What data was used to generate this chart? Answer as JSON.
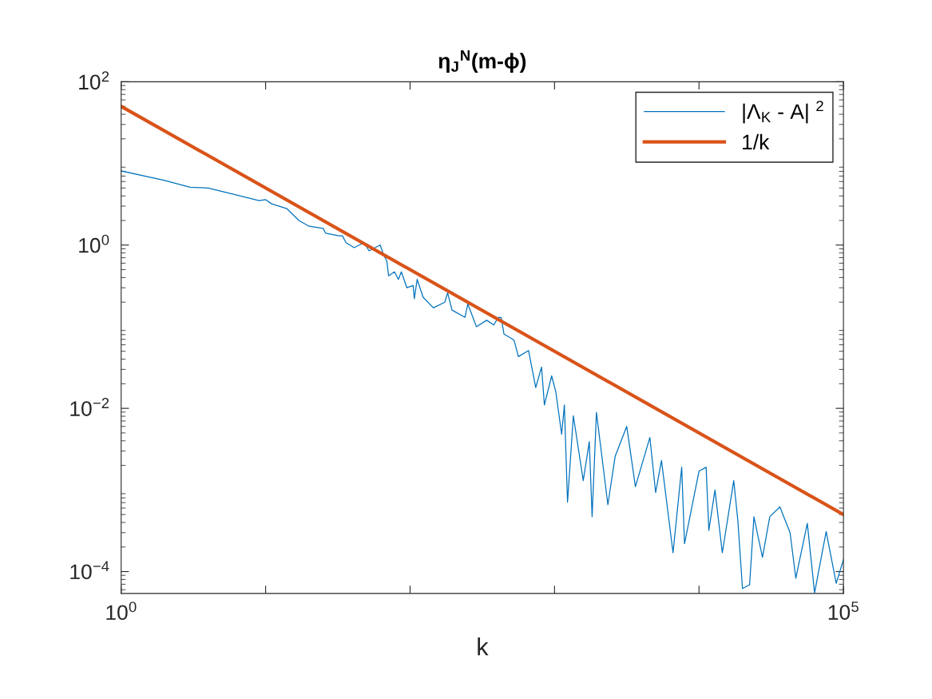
{
  "chart_data": {
    "type": "line",
    "title": "η$_{J}$$^{N}$(m-ϕ)",
    "xlabel": "k",
    "log": "xy",
    "grid": false,
    "legend": "top right",
    "marker": "none",
    "line_style": "solid",
    "xlim": [
      1,
      100000
    ],
    "xticks": [
      {
        "value": 1,
        "label": "10$^{0}$"
      },
      {
        "value": 10,
        "label": null
      },
      {
        "value": 100,
        "label": null
      },
      {
        "value": 1000,
        "label": null
      },
      {
        "value": 10000,
        "label": null
      },
      {
        "value": 100000,
        "label": "10$^{5}$"
      }
    ],
    "ylim": [
      5.4e-05,
      100
    ],
    "yticks": [
      {
        "value": 0.0001,
        "label": "10$^{−4}$"
      },
      {
        "value": 0.01,
        "label": "10$^{−2}$"
      },
      {
        "value": 1,
        "label": "10$^{0}$"
      },
      {
        "value": 100,
        "label": "10$^{2}$"
      }
    ],
    "series": [
      {
        "name": "|Λ$_{K}$ - A| $^{2}$",
        "color": "#0072bd",
        "x": [
          1,
          2.0,
          3.0,
          4.0,
          6.3,
          9.0,
          10,
          11,
          14,
          17,
          20,
          25,
          26,
          32,
          34,
          36,
          41,
          48,
          52,
          62,
          66,
          69,
          71,
          78,
          83,
          87,
          95,
          105,
          107,
          112,
          123,
          145,
          174,
          182,
          195,
          240,
          251,
          288,
          339,
          380,
          407,
          427,
          447,
          501,
          525,
          562,
          661,
          741,
          813,
          851,
          955,
          1020,
          1120,
          1170,
          1230,
          1350,
          1580,
          1740,
          1820,
          1950,
          2340,
          2630,
          3160,
          3630,
          4570,
          5010,
          5500,
          6610,
          7590,
          7940,
          10000,
          11200,
          11700,
          12900,
          14500,
          17400,
          18600,
          20000,
          22400,
          24000,
          27500,
          30900,
          36300,
          42700,
          46800,
          56200,
          63100,
          75900,
          89100,
          100000
        ],
        "values": [
          8.1,
          6.2,
          5.1,
          5.0,
          4.1,
          3.5,
          3.6,
          3.2,
          2.8,
          2.0,
          1.7,
          1.6,
          1.4,
          1.3,
          1.3,
          1.07,
          0.93,
          1.07,
          0.85,
          1.0,
          0.74,
          0.64,
          0.42,
          0.47,
          0.38,
          0.47,
          0.3,
          0.32,
          0.22,
          0.38,
          0.23,
          0.17,
          0.2,
          0.26,
          0.16,
          0.13,
          0.19,
          0.1,
          0.12,
          0.105,
          0.13,
          0.13,
          0.081,
          0.072,
          0.068,
          0.043,
          0.051,
          0.018,
          0.032,
          0.011,
          0.025,
          0.016,
          0.0048,
          0.011,
          0.00071,
          0.0081,
          0.0013,
          0.0039,
          0.00047,
          0.0089,
          0.00066,
          0.0026,
          0.006,
          0.0011,
          0.0044,
          0.00093,
          0.0023,
          0.00017,
          0.0019,
          0.00022,
          0.0017,
          0.0019,
          0.00032,
          0.001,
          0.00017,
          0.0013,
          0.00041,
          6.2e-05,
          6.9e-05,
          0.00047,
          0.00015,
          0.00047,
          0.00062,
          0.0003,
          8.3e-05,
          0.00039,
          5.5e-05,
          0.00031,
          7.2e-05,
          0.00014
        ]
      },
      {
        "name": "1/k",
        "color": "#d95319",
        "x": [
          1,
          100000
        ],
        "values": [
          50,
          0.0005
        ]
      }
    ]
  }
}
